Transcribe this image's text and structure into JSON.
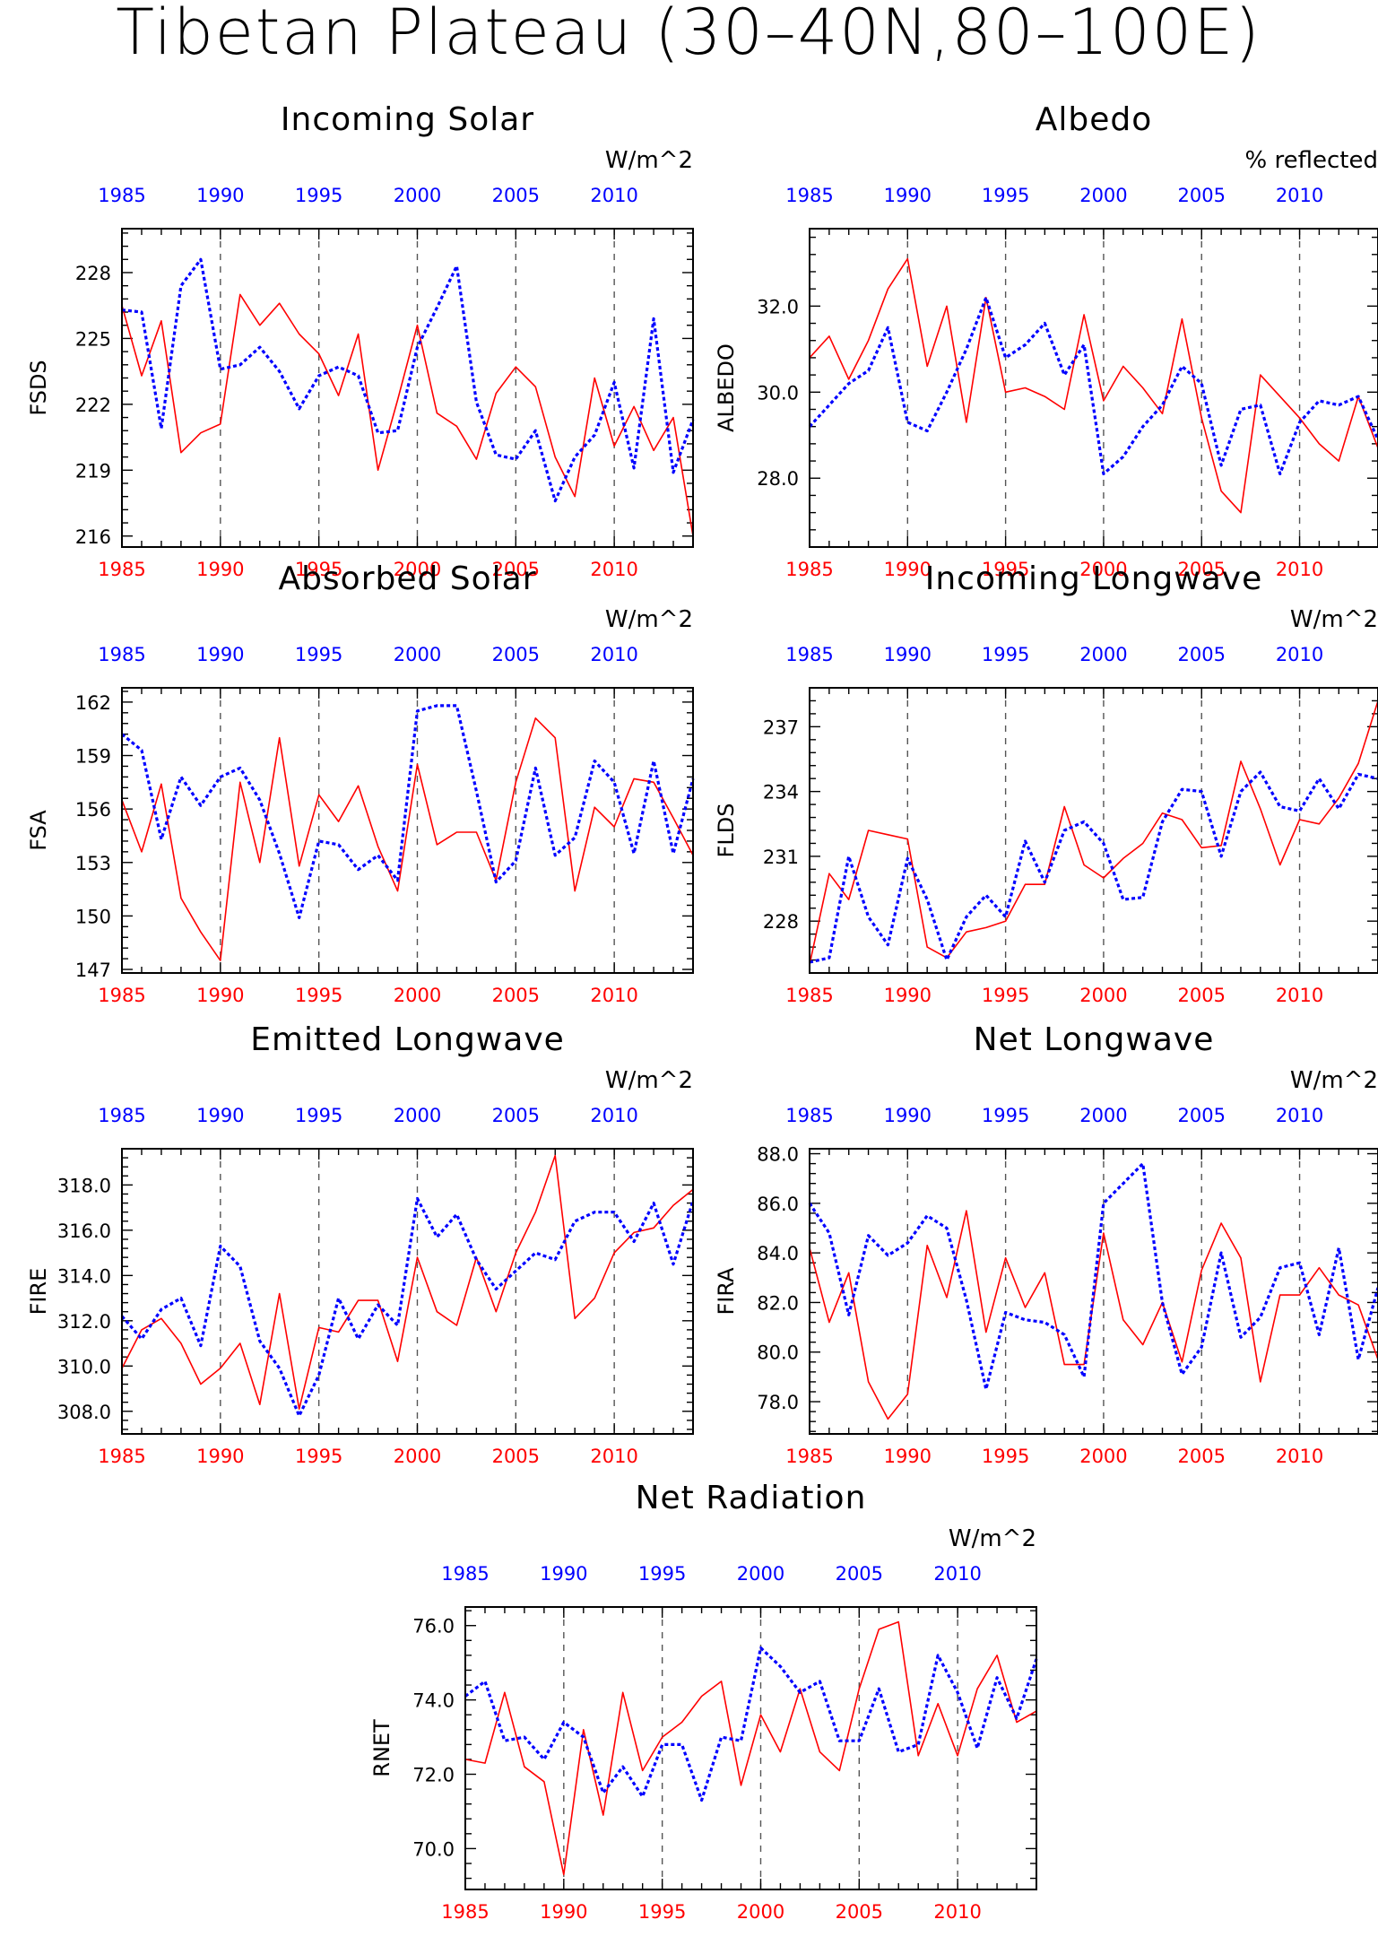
{
  "figure_title": "Tibetan Plateau (30–40N,80–100E)",
  "colors": {
    "series_red": "#ff0000",
    "series_blue": "#0000ff",
    "axis": "#000000"
  },
  "chart_data": [
    {
      "id": "fsds",
      "type": "line",
      "title": "Incoming Solar",
      "ylabel": "FSDS",
      "units": "W/m^2",
      "xlim": [
        1985,
        2014
      ],
      "ylim": [
        215.5,
        230
      ],
      "yticks": [
        216,
        219,
        222,
        225,
        228
      ],
      "ytick_decimals": 0,
      "xticks": [
        1985,
        1990,
        1995,
        2000,
        2005,
        2010
      ],
      "x": [
        1985,
        1986,
        1987,
        1988,
        1989,
        1990,
        1991,
        1992,
        1993,
        1994,
        1995,
        1996,
        1997,
        1998,
        1999,
        2000,
        2001,
        2002,
        2003,
        2004,
        2005,
        2006,
        2007,
        2008,
        2009,
        2010,
        2011,
        2012,
        2013,
        2014
      ],
      "series": [
        {
          "color": "red",
          "style": "solid",
          "values": [
            226.5,
            223.3,
            225.8,
            219.8,
            220.7,
            221.1,
            227.0,
            225.6,
            226.6,
            225.2,
            224.3,
            222.4,
            225.2,
            219.0,
            222.2,
            225.6,
            221.6,
            221.0,
            219.5,
            222.5,
            223.7,
            222.8,
            219.6,
            217.8,
            223.2,
            220.1,
            221.9,
            219.9,
            221.4,
            216.0
          ]
        },
        {
          "color": "blue",
          "style": "dotted",
          "values": [
            226.3,
            226.2,
            220.9,
            227.4,
            228.6,
            223.6,
            223.8,
            224.6,
            223.5,
            221.8,
            223.3,
            223.7,
            223.3,
            220.7,
            220.8,
            224.6,
            226.4,
            228.3,
            222.1,
            219.7,
            219.5,
            220.8,
            217.6,
            219.6,
            220.6,
            223.0,
            219.1,
            225.9,
            218.9,
            221.3
          ]
        }
      ]
    },
    {
      "id": "albedo",
      "type": "line",
      "title": "Albedo",
      "ylabel": "ALBEDO",
      "units": "% reflected",
      "xlim": [
        1985,
        2014
      ],
      "ylim": [
        26.4,
        33.8
      ],
      "yticks": [
        28.0,
        30.0,
        32.0
      ],
      "ytick_decimals": 1,
      "xticks": [
        1985,
        1990,
        1995,
        2000,
        2005,
        2010
      ],
      "x": [
        1985,
        1986,
        1987,
        1988,
        1989,
        1990,
        1991,
        1992,
        1993,
        1994,
        1995,
        1996,
        1997,
        1998,
        1999,
        2000,
        2001,
        2002,
        2003,
        2004,
        2005,
        2006,
        2007,
        2008,
        2009,
        2010,
        2011,
        2012,
        2013,
        2014
      ],
      "series": [
        {
          "color": "red",
          "style": "solid",
          "values": [
            30.8,
            31.3,
            30.3,
            31.2,
            32.4,
            33.1,
            30.6,
            32.0,
            29.3,
            32.2,
            30.0,
            30.1,
            29.9,
            29.6,
            31.8,
            29.8,
            30.6,
            30.1,
            29.5,
            31.7,
            29.4,
            27.7,
            27.2,
            30.4,
            29.9,
            29.4,
            28.8,
            28.4,
            29.9,
            28.7
          ]
        },
        {
          "color": "blue",
          "style": "dotted",
          "values": [
            29.2,
            29.7,
            30.2,
            30.5,
            31.5,
            29.3,
            29.1,
            30.0,
            31.0,
            32.2,
            30.8,
            31.1,
            31.6,
            30.4,
            31.1,
            28.1,
            28.5,
            29.2,
            29.7,
            30.6,
            30.2,
            28.3,
            29.6,
            29.7,
            28.1,
            29.3,
            29.8,
            29.7,
            29.9,
            28.9
          ]
        }
      ]
    },
    {
      "id": "fsa",
      "type": "line",
      "title": "Absorbed Solar",
      "ylabel": "FSA",
      "units": "W/m^2",
      "xlim": [
        1985,
        2014
      ],
      "ylim": [
        146.8,
        162.8
      ],
      "yticks": [
        147,
        150,
        153,
        156,
        159,
        162
      ],
      "ytick_decimals": 0,
      "xticks": [
        1985,
        1990,
        1995,
        2000,
        2005,
        2010
      ],
      "x": [
        1985,
        1986,
        1987,
        1988,
        1989,
        1990,
        1991,
        1992,
        1993,
        1994,
        1995,
        1996,
        1997,
        1998,
        1999,
        2000,
        2001,
        2002,
        2003,
        2004,
        2005,
        2006,
        2007,
        2008,
        2009,
        2010,
        2011,
        2012,
        2013,
        2014
      ],
      "series": [
        {
          "color": "red",
          "style": "solid",
          "values": [
            156.5,
            153.6,
            157.4,
            151.0,
            149.1,
            147.5,
            157.5,
            153.0,
            160.0,
            152.8,
            156.8,
            155.3,
            157.3,
            153.9,
            151.4,
            158.5,
            154.0,
            154.7,
            154.7,
            152.0,
            157.5,
            161.1,
            160.0,
            151.4,
            156.1,
            155.0,
            157.7,
            157.5,
            155.5,
            153.4
          ]
        },
        {
          "color": "blue",
          "style": "dotted",
          "values": [
            160.2,
            159.3,
            154.3,
            157.8,
            156.2,
            157.8,
            158.3,
            156.5,
            153.5,
            149.9,
            154.2,
            154.0,
            152.6,
            153.4,
            152.0,
            161.5,
            161.8,
            161.8,
            157.0,
            151.9,
            153.1,
            158.3,
            153.4,
            154.4,
            158.7,
            157.5,
            153.5,
            158.7,
            153.5,
            157.7
          ]
        }
      ]
    },
    {
      "id": "flds",
      "type": "line",
      "title": "Incoming Longwave",
      "ylabel": "FLDS",
      "units": "W/m^2",
      "xlim": [
        1985,
        2014
      ],
      "ylim": [
        225.6,
        238.8
      ],
      "yticks": [
        228,
        231,
        234,
        237
      ],
      "ytick_decimals": 0,
      "xticks": [
        1985,
        1990,
        1995,
        2000,
        2005,
        2010
      ],
      "x": [
        1985,
        1986,
        1987,
        1988,
        1989,
        1990,
        1991,
        1992,
        1993,
        1994,
        1995,
        1996,
        1997,
        1998,
        1999,
        2000,
        2001,
        2002,
        2003,
        2004,
        2005,
        2006,
        2007,
        2008,
        2009,
        2010,
        2011,
        2012,
        2013,
        2014
      ],
      "series": [
        {
          "color": "red",
          "style": "solid",
          "values": [
            226.0,
            230.2,
            229.0,
            232.2,
            232.0,
            231.8,
            226.8,
            226.3,
            227.5,
            227.7,
            228.0,
            229.7,
            229.7,
            233.3,
            230.6,
            230.0,
            230.9,
            231.6,
            233.0,
            232.7,
            231.4,
            231.5,
            235.4,
            233.2,
            230.6,
            232.7,
            232.5,
            233.7,
            235.3,
            238.2
          ]
        },
        {
          "color": "blue",
          "style": "dotted",
          "values": [
            226.1,
            226.3,
            231.0,
            228.2,
            226.9,
            230.9,
            229.0,
            226.2,
            228.2,
            229.2,
            228.2,
            231.7,
            229.8,
            232.2,
            232.6,
            231.6,
            229.0,
            229.1,
            232.6,
            234.1,
            234.0,
            231.0,
            234.0,
            234.9,
            233.3,
            233.1,
            234.6,
            233.2,
            234.8,
            234.6
          ]
        }
      ]
    },
    {
      "id": "fire",
      "type": "line",
      "title": "Emitted Longwave",
      "ylabel": "FIRE",
      "units": "W/m^2",
      "xlim": [
        1985,
        2014
      ],
      "ylim": [
        307.0,
        319.6
      ],
      "yticks": [
        308.0,
        310.0,
        312.0,
        314.0,
        316.0,
        318.0
      ],
      "ytick_decimals": 1,
      "xticks": [
        1985,
        1990,
        1995,
        2000,
        2005,
        2010
      ],
      "x": [
        1985,
        1986,
        1987,
        1988,
        1989,
        1990,
        1991,
        1992,
        1993,
        1994,
        1995,
        1996,
        1997,
        1998,
        1999,
        2000,
        2001,
        2002,
        2003,
        2004,
        2005,
        2006,
        2007,
        2008,
        2009,
        2010,
        2011,
        2012,
        2013,
        2014
      ],
      "series": [
        {
          "color": "red",
          "style": "solid",
          "values": [
            309.9,
            311.6,
            312.1,
            311.0,
            309.2,
            309.9,
            311.0,
            308.3,
            313.2,
            308.1,
            311.7,
            311.5,
            312.9,
            312.9,
            310.2,
            314.8,
            312.4,
            311.8,
            314.8,
            312.4,
            315.0,
            316.8,
            319.3,
            312.1,
            313.0,
            315.0,
            315.9,
            316.1,
            317.1,
            317.8
          ]
        },
        {
          "color": "blue",
          "style": "dotted",
          "values": [
            312.2,
            311.2,
            312.5,
            313.0,
            310.9,
            315.3,
            314.4,
            311.1,
            309.9,
            307.8,
            309.6,
            313.0,
            311.2,
            312.7,
            311.8,
            317.4,
            315.7,
            316.7,
            314.7,
            313.4,
            314.2,
            315.0,
            314.7,
            316.4,
            316.8,
            316.8,
            315.5,
            317.2,
            314.5,
            317.3
          ]
        }
      ]
    },
    {
      "id": "fira",
      "type": "line",
      "title": "Net Longwave",
      "ylabel": "FIRA",
      "units": "W/m^2",
      "xlim": [
        1985,
        2014
      ],
      "ylim": [
        76.7,
        88.2
      ],
      "yticks": [
        78.0,
        80.0,
        82.0,
        84.0,
        86.0,
        88.0
      ],
      "ytick_decimals": 1,
      "xticks": [
        1985,
        1990,
        1995,
        2000,
        2005,
        2010
      ],
      "x": [
        1985,
        1986,
        1987,
        1988,
        1989,
        1990,
        1991,
        1992,
        1993,
        1994,
        1995,
        1996,
        1997,
        1998,
        1999,
        2000,
        2001,
        2002,
        2003,
        2004,
        2005,
        2006,
        2007,
        2008,
        2009,
        2010,
        2011,
        2012,
        2013,
        2014
      ],
      "series": [
        {
          "color": "red",
          "style": "solid",
          "values": [
            84.2,
            81.2,
            83.2,
            78.8,
            77.3,
            78.3,
            84.3,
            82.2,
            85.7,
            80.8,
            83.8,
            81.8,
            83.2,
            79.5,
            79.5,
            84.8,
            81.3,
            80.3,
            82.0,
            79.6,
            83.3,
            85.2,
            83.8,
            78.8,
            82.3,
            82.3,
            83.4,
            82.3,
            81.9,
            79.7
          ]
        },
        {
          "color": "blue",
          "style": "dotted",
          "values": [
            86.0,
            84.8,
            81.5,
            84.7,
            83.9,
            84.4,
            85.5,
            85.0,
            82.1,
            78.5,
            81.6,
            81.3,
            81.2,
            80.7,
            79.0,
            86.0,
            86.8,
            87.6,
            82.0,
            79.1,
            80.2,
            84.0,
            80.6,
            81.4,
            83.4,
            83.6,
            80.7,
            84.2,
            79.7,
            82.6
          ]
        }
      ]
    },
    {
      "id": "rnet",
      "type": "line",
      "title": "Net Radiation",
      "ylabel": "RNET",
      "units": "W/m^2",
      "xlim": [
        1985,
        2014
      ],
      "ylim": [
        68.9,
        76.5
      ],
      "yticks": [
        70.0,
        72.0,
        74.0,
        76.0
      ],
      "ytick_decimals": 1,
      "xticks": [
        1985,
        1990,
        1995,
        2000,
        2005,
        2010
      ],
      "x": [
        1985,
        1986,
        1987,
        1988,
        1989,
        1990,
        1991,
        1992,
        1993,
        1994,
        1995,
        1996,
        1997,
        1998,
        1999,
        2000,
        2001,
        2002,
        2003,
        2004,
        2005,
        2006,
        2007,
        2008,
        2009,
        2010,
        2011,
        2012,
        2013,
        2014
      ],
      "series": [
        {
          "color": "red",
          "style": "solid",
          "values": [
            72.4,
            72.3,
            74.2,
            72.2,
            71.8,
            69.3,
            73.2,
            70.9,
            74.2,
            72.1,
            73.0,
            73.4,
            74.1,
            74.5,
            71.7,
            73.6,
            72.6,
            74.3,
            72.6,
            72.1,
            74.3,
            75.9,
            76.1,
            72.5,
            73.9,
            72.5,
            74.3,
            75.2,
            73.4,
            73.7
          ]
        },
        {
          "color": "blue",
          "style": "dotted",
          "values": [
            74.1,
            74.5,
            72.9,
            73.0,
            72.4,
            73.4,
            73.0,
            71.5,
            72.2,
            71.4,
            72.8,
            72.8,
            71.3,
            73.0,
            72.9,
            75.4,
            74.9,
            74.2,
            74.5,
            72.9,
            72.9,
            74.3,
            72.6,
            72.8,
            75.2,
            74.2,
            72.7,
            74.6,
            73.5,
            75.1
          ]
        }
      ]
    }
  ]
}
